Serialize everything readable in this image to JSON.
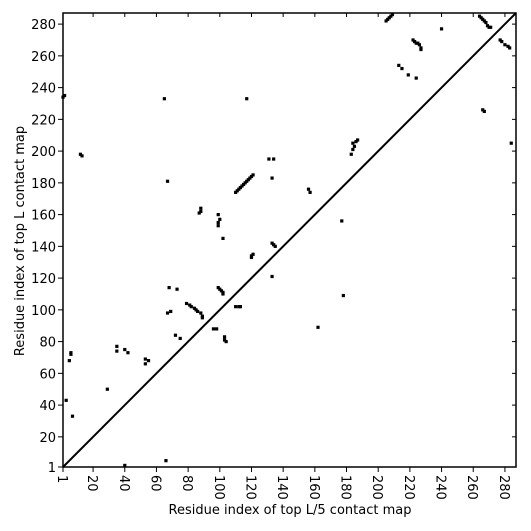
{
  "chart_data": {
    "type": "scatter",
    "xlabel": "Residue index of top L/5 contact map",
    "ylabel": "Residue index of top L contact map",
    "xlim": [
      1,
      287
    ],
    "ylim": [
      1,
      287
    ],
    "xticks": [
      1,
      20,
      40,
      60,
      80,
      100,
      120,
      140,
      160,
      180,
      200,
      220,
      240,
      260,
      280
    ],
    "yticks": [
      1,
      20,
      40,
      60,
      80,
      100,
      120,
      140,
      160,
      180,
      200,
      220,
      240,
      260,
      280
    ],
    "color": "#000000",
    "x": [
      1,
      2,
      12,
      13,
      6,
      6,
      5,
      3,
      7,
      79,
      81,
      82,
      84,
      85,
      86,
      88,
      89,
      89,
      88,
      88,
      87,
      99,
      99,
      100,
      99,
      99,
      100,
      101,
      102,
      102,
      103,
      104,
      103,
      96,
      98,
      110,
      111,
      112,
      113,
      114,
      115,
      116,
      117,
      118,
      119,
      120,
      121,
      120,
      120,
      121,
      134,
      135,
      133,
      110,
      112,
      133,
      131,
      134,
      184,
      186,
      187,
      185,
      184,
      183,
      206,
      207,
      208,
      205,
      209,
      222,
      223,
      224,
      225,
      226,
      227,
      227,
      213,
      215,
      219,
      224,
      264,
      265,
      266,
      267,
      268,
      269,
      270,
      271,
      277,
      278,
      280,
      282,
      283,
      266,
      267,
      240,
      284,
      35,
      35,
      40,
      42,
      53,
      55,
      53,
      65,
      67,
      68,
      73,
      67,
      69,
      72,
      75,
      162,
      133,
      156,
      157,
      178,
      177,
      102,
      113,
      117,
      29,
      66,
      40
    ],
    "values": [
      234,
      235,
      198,
      197,
      73,
      72,
      68,
      43,
      33,
      104,
      103,
      102,
      101,
      100,
      99,
      98,
      96,
      95,
      162,
      164,
      161,
      153,
      155,
      157,
      160,
      114,
      113,
      112,
      111,
      110,
      81,
      80,
      83,
      88,
      88,
      174,
      175,
      176,
      177,
      178,
      179,
      180,
      181,
      182,
      183,
      184,
      185,
      133,
      134,
      135,
      141,
      140,
      142,
      102,
      102,
      183,
      195,
      195,
      205,
      206,
      207,
      203,
      201,
      198,
      283,
      284,
      285,
      282,
      286,
      270,
      269,
      268,
      268,
      267,
      265,
      264,
      254,
      252,
      248,
      246,
      285,
      284,
      283,
      282,
      281,
      279,
      278,
      278,
      270,
      269,
      267,
      266,
      265,
      226,
      225,
      277,
      205,
      77,
      74,
      75,
      73,
      69,
      68,
      66,
      233,
      181,
      114,
      113,
      98,
      99,
      84,
      82,
      89,
      121,
      176,
      174,
      109,
      156,
      145,
      102,
      233,
      50,
      5,
      2
    ],
    "reference_line": {
      "x": [
        1,
        287
      ],
      "values": [
        1,
        287
      ]
    }
  }
}
